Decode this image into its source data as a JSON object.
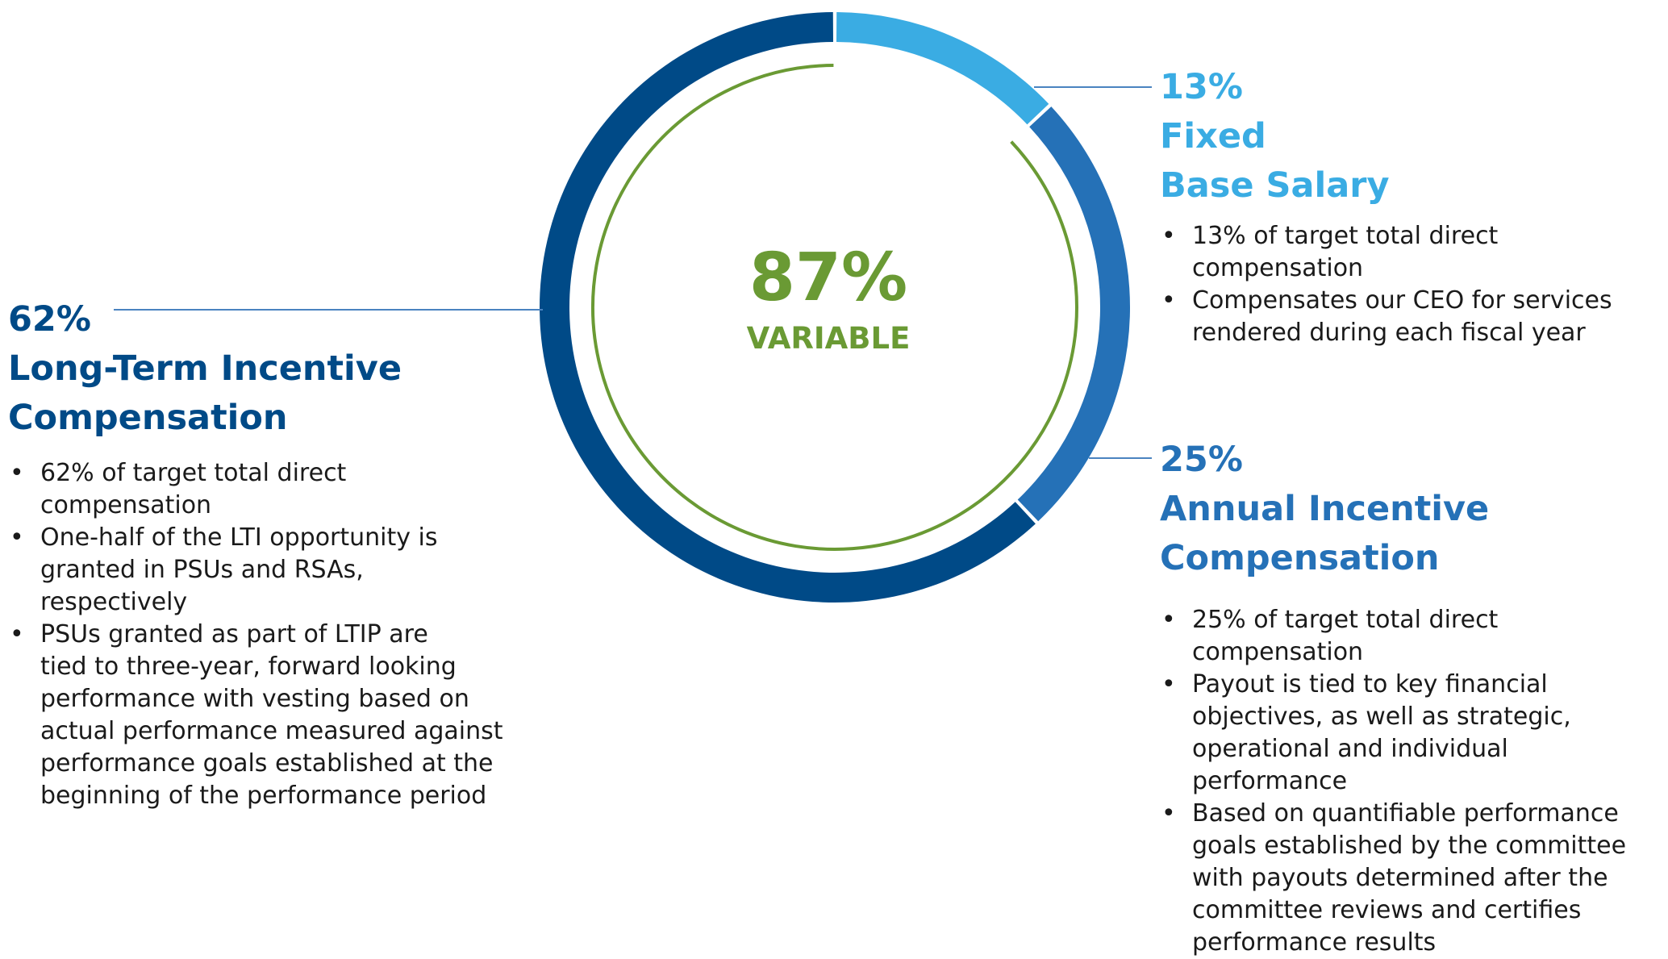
{
  "colors": {
    "lti": "#004a87",
    "base_salary": "#3aace3",
    "annual_incentive": "#2571b7",
    "variable": "#6a9a34",
    "leader": "#4a83c0"
  },
  "center": {
    "value": "87%",
    "label": "VARIABLE"
  },
  "chart_data": {
    "type": "pie",
    "style": "donut",
    "title": "",
    "center_value": "87%",
    "center_label": "VARIABLE",
    "slices": [
      {
        "label": "Fixed Base Salary",
        "value": 13,
        "color": "#3aace3"
      },
      {
        "label": "Annual Incentive Compensation",
        "value": 25,
        "color": "#2571b7"
      },
      {
        "label": "Long-Term Incentive Compensation",
        "value": 62,
        "color": "#004a87"
      }
    ],
    "variable_arc": {
      "label": "VARIABLE",
      "value": 87,
      "color": "#6a9a34"
    }
  },
  "blocks": {
    "lti": {
      "percent": "62%",
      "heading": [
        "Long-Term Incentive",
        "Compensation"
      ],
      "bullets": [
        [
          "62% of target total direct",
          "compensation"
        ],
        [
          "One-half of the LTI opportunity is",
          "granted in PSUs and RSAs,",
          "respectively"
        ],
        [
          "PSUs granted as part of LTIP are",
          "tied to three-year, forward looking",
          "performance with vesting based on",
          "actual performance measured against",
          "performance goals established at the",
          "beginning of the performance period"
        ]
      ]
    },
    "base_salary": {
      "percent": "13%",
      "heading": [
        "Fixed",
        "Base Salary"
      ],
      "bullets": [
        [
          "13% of target total direct",
          "compensation"
        ],
        [
          "Compensates our CEO for services",
          "rendered during each fiscal year"
        ]
      ]
    },
    "annual_incentive": {
      "percent": "25%",
      "heading": [
        "Annual Incentive",
        "Compensation"
      ],
      "bullets": [
        [
          "25% of target total direct",
          "compensation"
        ],
        [
          "Payout is tied to key financial",
          "objectives, as well as strategic,",
          "operational and individual",
          "performance"
        ],
        [
          "Based on quantifiable performance",
          "goals established by the committee",
          "with payouts determined after the",
          "committee reviews and certifies",
          "performance results"
        ]
      ]
    }
  }
}
